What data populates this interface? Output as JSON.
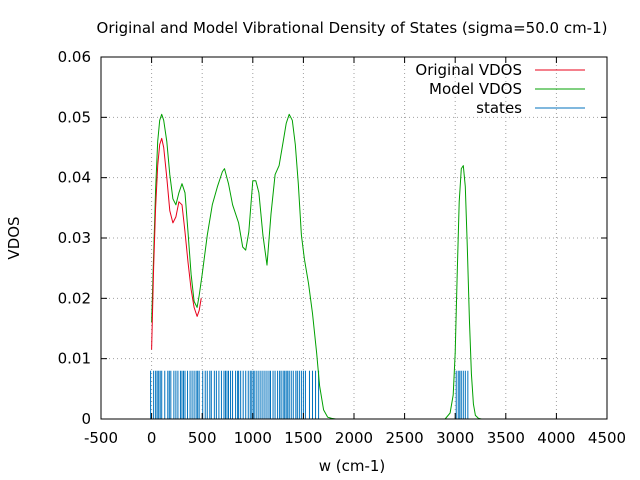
{
  "chart_data": {
    "type": "line",
    "title": "Original and Model Vibrational Density of States (sigma=50.0 cm-1)",
    "xlabel": "w (cm-1)",
    "ylabel": "VDOS",
    "xlim": [
      -500,
      4500
    ],
    "ylim": [
      0,
      0.06
    ],
    "xticks": [
      -500,
      0,
      500,
      1000,
      1500,
      2000,
      2500,
      3000,
      3500,
      4000,
      4500
    ],
    "yticks": [
      0,
      0.01,
      0.02,
      0.03,
      0.04,
      0.05,
      0.06
    ],
    "xtick_labels": [
      "-500",
      "0",
      "500",
      "1000",
      "1500",
      "2000",
      "2500",
      "3000",
      "3500",
      "4000",
      "4500"
    ],
    "ytick_labels": [
      "0",
      "0.01",
      "0.02",
      "0.03",
      "0.04",
      "0.05",
      "0.06"
    ],
    "grid": true,
    "legend_position": "top-right",
    "colors": {
      "original": "#e8001a",
      "model": "#00a000",
      "states": "#0072bd",
      "grid": "#a0a0a0",
      "axis": "#000000"
    },
    "series": [
      {
        "name": "Original VDOS",
        "key": "original",
        "x": [
          0,
          20,
          40,
          60,
          80,
          100,
          120,
          150,
          180,
          210,
          240,
          270,
          300,
          330,
          360,
          390,
          420,
          450,
          470,
          490
        ],
        "y": [
          0.0115,
          0.025,
          0.035,
          0.042,
          0.0455,
          0.0465,
          0.045,
          0.04,
          0.0345,
          0.0325,
          0.0335,
          0.036,
          0.0355,
          0.031,
          0.026,
          0.0215,
          0.0185,
          0.017,
          0.018,
          0.02
        ]
      },
      {
        "name": "Model VDOS",
        "key": "model",
        "x": [
          0,
          20,
          40,
          60,
          80,
          100,
          120,
          150,
          180,
          210,
          240,
          270,
          300,
          330,
          360,
          390,
          420,
          450,
          470,
          500,
          550,
          600,
          650,
          700,
          720,
          760,
          800,
          860,
          900,
          930,
          960,
          1000,
          1030,
          1060,
          1100,
          1140,
          1180,
          1220,
          1260,
          1300,
          1330,
          1360,
          1390,
          1420,
          1450,
          1480,
          1510,
          1550,
          1590,
          1630,
          1660,
          1700,
          1740,
          1780,
          1820,
          1850,
          1900,
          2900,
          2950,
          2980,
          3000,
          3020,
          3040,
          3060,
          3080,
          3100,
          3120,
          3140,
          3160,
          3180,
          3200,
          3230,
          3260,
          3300,
          4500
        ],
        "y": [
          0.016,
          0.027,
          0.038,
          0.046,
          0.0495,
          0.0505,
          0.0495,
          0.046,
          0.0405,
          0.0365,
          0.0355,
          0.0375,
          0.039,
          0.0375,
          0.031,
          0.024,
          0.0195,
          0.0185,
          0.0205,
          0.024,
          0.0305,
          0.0355,
          0.0385,
          0.041,
          0.0415,
          0.039,
          0.0355,
          0.0325,
          0.0285,
          0.028,
          0.031,
          0.0395,
          0.0395,
          0.0375,
          0.0305,
          0.0255,
          0.034,
          0.0405,
          0.042,
          0.046,
          0.049,
          0.0505,
          0.0495,
          0.0455,
          0.039,
          0.0305,
          0.0265,
          0.0225,
          0.0175,
          0.011,
          0.0055,
          0.0015,
          0.0003,
          0.0001,
          0,
          0,
          0,
          0,
          0.001,
          0.004,
          0.011,
          0.024,
          0.036,
          0.0415,
          0.042,
          0.0385,
          0.0285,
          0.0165,
          0.0075,
          0.0025,
          0.0006,
          0.0001,
          0,
          0,
          0
        ]
      },
      {
        "name": "states",
        "key": "states",
        "impulse_height": 0.008,
        "x": [
          -10,
          20,
          40,
          55,
          70,
          85,
          100,
          130,
          160,
          175,
          190,
          220,
          240,
          260,
          285,
          300,
          315,
          330,
          355,
          380,
          400,
          420,
          440,
          455,
          470,
          505,
          530,
          550,
          575,
          590,
          620,
          640,
          665,
          690,
          715,
          730,
          745,
          760,
          780,
          800,
          830,
          850,
          860,
          880,
          905,
          930,
          955,
          975,
          990,
          1005,
          1020,
          1040,
          1060,
          1080,
          1100,
          1120,
          1140,
          1160,
          1175,
          1200,
          1220,
          1245,
          1265,
          1280,
          1300,
          1315,
          1330,
          1345,
          1360,
          1380,
          1400,
          1425,
          1440,
          1460,
          1480,
          1500,
          1520,
          1560,
          1590,
          1620,
          1650,
          3010,
          3030,
          3045,
          3060,
          3080,
          3100,
          3125
        ]
      }
    ]
  }
}
